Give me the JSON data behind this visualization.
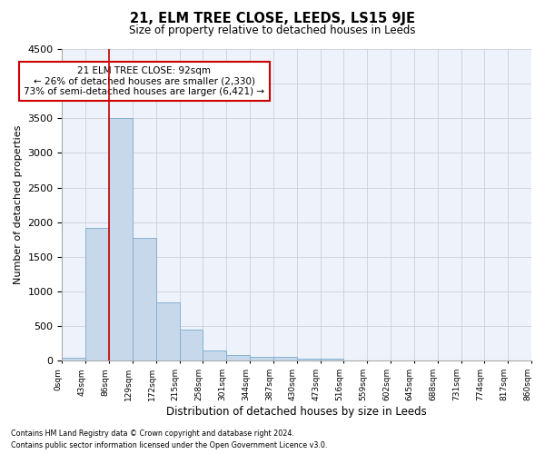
{
  "title": "21, ELM TREE CLOSE, LEEDS, LS15 9JE",
  "subtitle": "Size of property relative to detached houses in Leeds",
  "xlabel": "Distribution of detached houses by size in Leeds",
  "ylabel": "Number of detached properties",
  "bar_color": "#c8d8eb",
  "bar_edge_color": "#7aabcf",
  "marker_line_color": "#cc0000",
  "background_color": "#eef2fa",
  "tick_labels": [
    "0sqm",
    "43sqm",
    "86sqm",
    "129sqm",
    "172sqm",
    "215sqm",
    "258sqm",
    "301sqm",
    "344sqm",
    "387sqm",
    "430sqm",
    "473sqm",
    "516sqm",
    "559sqm",
    "602sqm",
    "645sqm",
    "688sqm",
    "731sqm",
    "774sqm",
    "817sqm",
    "860sqm"
  ],
  "bar_values": [
    40,
    1920,
    3500,
    1770,
    840,
    455,
    155,
    90,
    60,
    55,
    35,
    30,
    0,
    0,
    0,
    0,
    0,
    0,
    0,
    0
  ],
  "ylim": [
    0,
    4500
  ],
  "yticks": [
    0,
    500,
    1000,
    1500,
    2000,
    2500,
    3000,
    3500,
    4000,
    4500
  ],
  "marker_bin_index": 2,
  "annotation_text": "21 ELM TREE CLOSE: 92sqm\n← 26% of detached houses are smaller (2,330)\n73% of semi-detached houses are larger (6,421) →",
  "annotation_box_color": "#ffffff",
  "annotation_box_edge_color": "#cc0000",
  "footer_line1": "Contains HM Land Registry data © Crown copyright and database right 2024.",
  "footer_line2": "Contains public sector information licensed under the Open Government Licence v3.0.",
  "grid_color": "#c8c8d8"
}
